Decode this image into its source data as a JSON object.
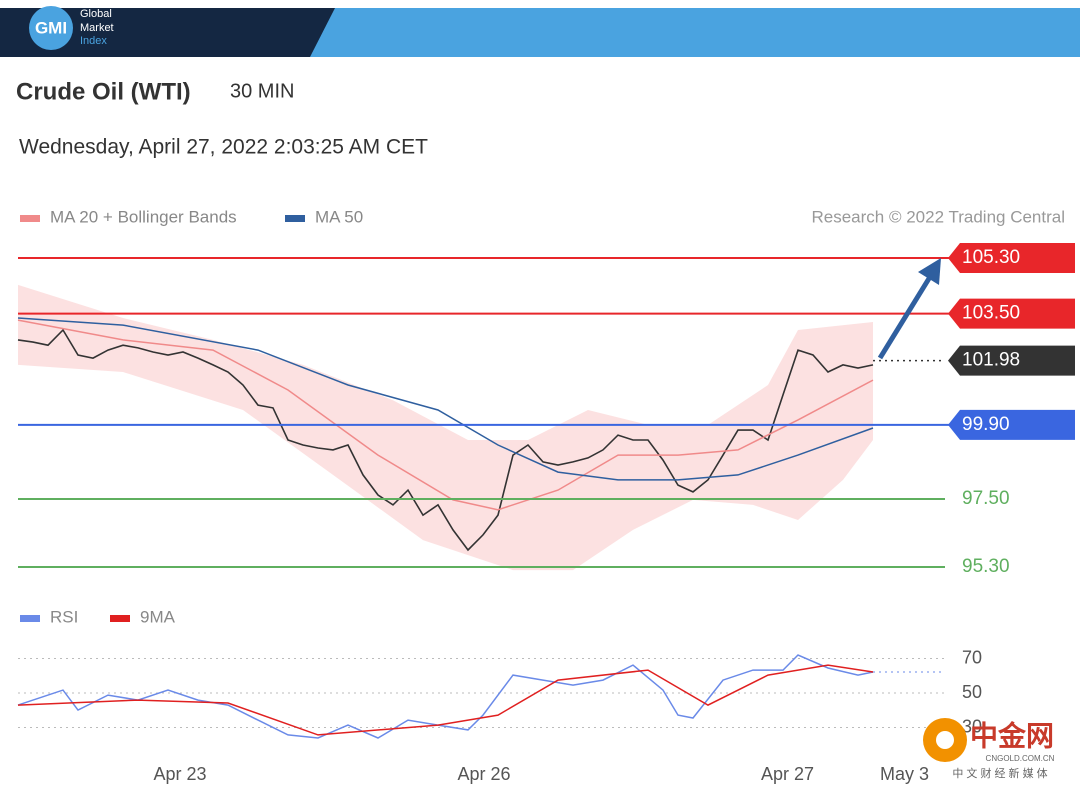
{
  "header": {
    "logo": "GMI",
    "brand": [
      "Global",
      "Market",
      "Index"
    ]
  },
  "watermark": {
    "name": "中金网",
    "url": "CNGOLD.COM.CN",
    "tagline": "中 文 财 经 新 媒 体"
  },
  "chart_data": [
    {
      "type": "line",
      "title": "Crude Oil (WTI)",
      "timeframe": "30 MIN",
      "timestamp": "Wednesday, April 27, 2022 2:03:25 AM CET",
      "source": "Research © 2022 Trading Central",
      "xlim": [
        0,
        61.8
      ],
      "ylim": [
        94.5,
        105.9
      ],
      "series": [
        {
          "color": "#333333",
          "x": [
            0,
            1,
            2,
            3,
            4,
            5,
            6,
            7,
            8,
            9,
            10,
            11,
            12,
            13,
            14,
            15,
            16,
            17,
            18,
            19,
            20,
            21,
            22,
            23,
            24,
            25,
            26,
            27,
            28,
            29,
            30,
            31,
            32,
            33,
            34,
            35,
            36,
            37,
            38,
            39,
            40,
            41,
            42,
            43,
            44,
            45,
            46,
            47,
            48,
            49,
            50,
            51,
            52,
            53,
            54,
            55,
            56,
            57
          ],
          "values": [
            102.65,
            102.58,
            102.48,
            102.97,
            102.16,
            102.06,
            102.32,
            102.48,
            102.39,
            102.26,
            102.16,
            102.26,
            102.06,
            101.84,
            101.61,
            101.19,
            100.54,
            100.45,
            99.41,
            99.25,
            99.15,
            99.09,
            99.25,
            98.28,
            97.63,
            97.31,
            97.79,
            96.98,
            97.31,
            96.5,
            95.85,
            96.34,
            96.98,
            98.92,
            99.25,
            98.7,
            98.6,
            98.7,
            98.83,
            99.09,
            99.57,
            99.41,
            99.41,
            98.76,
            97.95,
            97.73,
            98.12,
            98.92,
            99.73,
            99.73,
            99.41,
            100.87,
            102.32,
            102.16,
            101.61,
            101.84,
            101.74,
            101.84
          ]
        },
        {
          "name": "MA 20 + Bollinger Bands",
          "color": "#f08a8a",
          "x": [
            0,
            7,
            13,
            18,
            24,
            29,
            32,
            36,
            40,
            44,
            48,
            52,
            57
          ],
          "values": [
            103.29,
            102.65,
            102.32,
            101.03,
            98.92,
            97.47,
            97.15,
            97.79,
            98.92,
            98.92,
            99.09,
            100.06,
            101.35
          ]
        },
        {
          "name": "MA 50",
          "color": "#2f5f9f",
          "x": [
            0,
            7,
            16,
            22,
            28,
            32,
            36,
            40,
            44,
            48,
            52,
            57
          ],
          "values": [
            103.36,
            103.13,
            102.32,
            101.19,
            100.38,
            99.25,
            98.37,
            98.12,
            98.12,
            98.28,
            98.92,
            99.8
          ]
        }
      ],
      "bands": {
        "color": "#fcdcdc",
        "upper": {
          "x": [
            0,
            7,
            13,
            19,
            25,
            30,
            34,
            38,
            42,
            46,
            50,
            52,
            57
          ],
          "values": [
            104.43,
            103.36,
            102.65,
            101.84,
            100.7,
            99.41,
            99.41,
            100.38,
            99.9,
            99.9,
            101.19,
            102.97,
            103.23
          ]
        },
        "lower": {
          "x": [
            0,
            7,
            15,
            21,
            27,
            33,
            37,
            41,
            45,
            49,
            52,
            55,
            57
          ],
          "values": [
            101.84,
            101.61,
            100.38,
            98.28,
            96.17,
            95.2,
            95.2,
            96.5,
            97.47,
            97.31,
            96.82,
            98.12,
            99.41
          ]
        }
      },
      "levels": [
        {
          "value": 105.3,
          "label": "105.30",
          "color": "#e8262a",
          "box": true
        },
        {
          "value": 103.5,
          "label": "103.50",
          "color": "#e8262a",
          "box": true
        },
        {
          "value": 101.98,
          "color": "#333333",
          "box": true,
          "style": "dotted"
        },
        {
          "value": 99.9,
          "label": "99.90",
          "color": "#3a66e0",
          "box": true
        },
        {
          "value": 97.5,
          "label": "97.50",
          "color": "#5faf5f",
          "box": false
        },
        {
          "value": 95.3,
          "label": "95.30",
          "color": "#5faf5f",
          "box": false
        }
      ]
    },
    {
      "type": "line",
      "xlim": [
        0,
        61.8
      ],
      "ylim": [
        10,
        80
      ],
      "yticks": [
        30,
        50,
        70
      ],
      "grid": true,
      "xticks": [
        {
          "value": 10.8,
          "label": "Apr 23"
        },
        {
          "value": 31.07,
          "label": "Apr 26"
        },
        {
          "value": 51.3,
          "label": "Apr 27"
        },
        {
          "value": 59.1,
          "label": "May 3"
        }
      ],
      "series": [
        {
          "name": "RSI",
          "color": "#6a8ae8",
          "x": [
            0,
            3,
            4,
            6,
            8,
            10,
            12,
            14,
            16,
            18,
            20,
            22,
            24,
            26,
            28,
            30,
            31,
            33,
            35,
            37,
            39,
            41,
            43,
            44,
            45,
            47,
            49,
            51,
            52,
            54,
            56,
            57
          ],
          "values": [
            43,
            51.7,
            40.1,
            48.8,
            45.9,
            51.7,
            45.9,
            43,
            34.3,
            25.7,
            23.9,
            31.4,
            23.9,
            34.3,
            31.4,
            28.6,
            37.2,
            60.4,
            57.5,
            54.6,
            57.5,
            66.2,
            51.7,
            37.2,
            35.5,
            57.5,
            63.3,
            63.3,
            72,
            64.5,
            60.4,
            62.2
          ]
        },
        {
          "name": "9MA",
          "color": "#e02020",
          "x": [
            0,
            8,
            14,
            20,
            28,
            32,
            36,
            42,
            46,
            50,
            54,
            57
          ],
          "values": [
            43,
            45.9,
            44.2,
            25.7,
            31.4,
            37.2,
            57.5,
            63.3,
            43,
            60.4,
            66.2,
            62.2
          ]
        }
      ]
    }
  ]
}
